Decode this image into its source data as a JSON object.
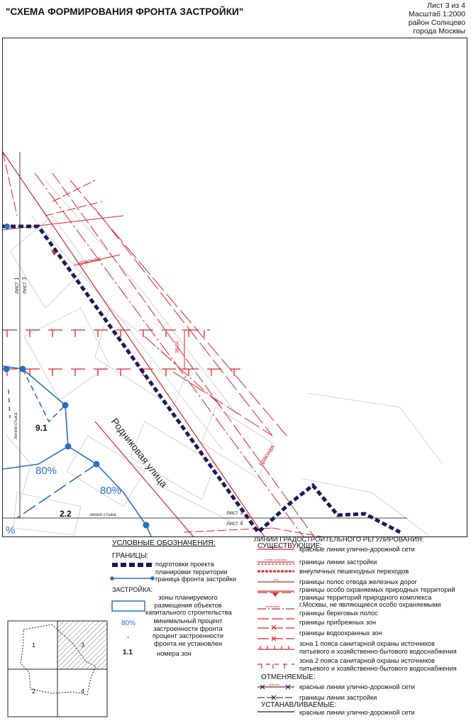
{
  "header": {
    "title": "\"СХЕМА ФОРМИРОВАНИЯ ФРОНТА ЗАСТРОЙКИ\"",
    "sheet": "Лист 3 из 4",
    "scale": "Масштаб 1:2000",
    "district": "район Солнцево",
    "city": "города Москвы"
  },
  "map": {
    "street_name": "Родниковая улица",
    "red_label_1": "красная",
    "red_label_2": "красная",
    "zone_9_1": "9.1",
    "zone_2_2": "2.2",
    "pct_1": "80%",
    "pct_2": "80%",
    "pct_3": "%",
    "sheet_left_a": "лист 1",
    "sheet_left_b": "лист 3",
    "sheet_bottom_a": "лист 3",
    "sheet_bottom_b": "лист 4",
    "junction_line_v": "линия стыка",
    "junction_line_h": "линия стыка",
    "dimension": "38,00"
  },
  "legend": {
    "title": "УСЛОВНЫЕ ОБОЗНАЧЕНИЯ:",
    "borders_heading": "ГРАНИЦЫ:",
    "b1_line1": "подготовки проекта",
    "b1_line2": "планировки территории",
    "b2": "граница фронта застройки",
    "build_heading": "ЗАСТРОЙКА:",
    "z1_line1": "зоны планируемого",
    "z1_line2": "размещения объектов",
    "z1_line3": "капитального строительства",
    "pct_symbol": "80%",
    "pct_line1": "минимальный процент",
    "pct_line2": "застроенности фронта",
    "dash_line1": "процент застроенности",
    "dash_line2": "фронта не установлен",
    "num_symbol": "1.1",
    "num_text": "номера зон",
    "reg_heading": "ЛИНИИ ГРАДОСТРОИТЕЛЬНОГО РЕГУЛИРОВАНИЯ:",
    "existing_heading": "СУЩЕСТВУЮЩИЕ:",
    "e1": "красные линии улично-дорожной сети",
    "e2": "границы линии застройки",
    "e3": "внеуличных пешеходных переходов",
    "e4": "границы полос отвода железных дорог",
    "e5a": "границы особо охраняемых природных территорий",
    "e5b": "границы территорий природного комплекса",
    "e5c": "г.Москвы, не являющиеся особо охраняемыми",
    "e6": "границы береговых полос",
    "e7": "границы прибрежных зон",
    "e8": "границы водоохранных зон",
    "e9a": "зона 1 пояса санитарной охраны источников",
    "e9b": "питьевого и хозяйственно-бытового водоснабжения",
    "e10a": "зона 2 пояса санитарной охраны источников",
    "e10b": "питьевого и хозяйственно-бытового водоснабжения",
    "cancel_heading": "ОТМЕНЯЕМЫЕ:",
    "c1": "красные линии улично-дорожной сети",
    "c2": "границы линии застройки",
    "set_heading": "УСТАНАВЛИВАЕМЫЕ:",
    "s1": "красные линии улично-дорожной сети",
    "sym_e1": "красная",
    "sym_e2": "линия застройки",
    "sym_e4": "ЖД",
    "sym_e6": "береговая",
    "sym_c1": "красная"
  },
  "key_map": {
    "cells": [
      "1",
      "2",
      "3",
      "4"
    ]
  },
  "colors": {
    "red": "#d8262c",
    "navy": "#1a1a5a",
    "blue": "#2a6fc4"
  }
}
